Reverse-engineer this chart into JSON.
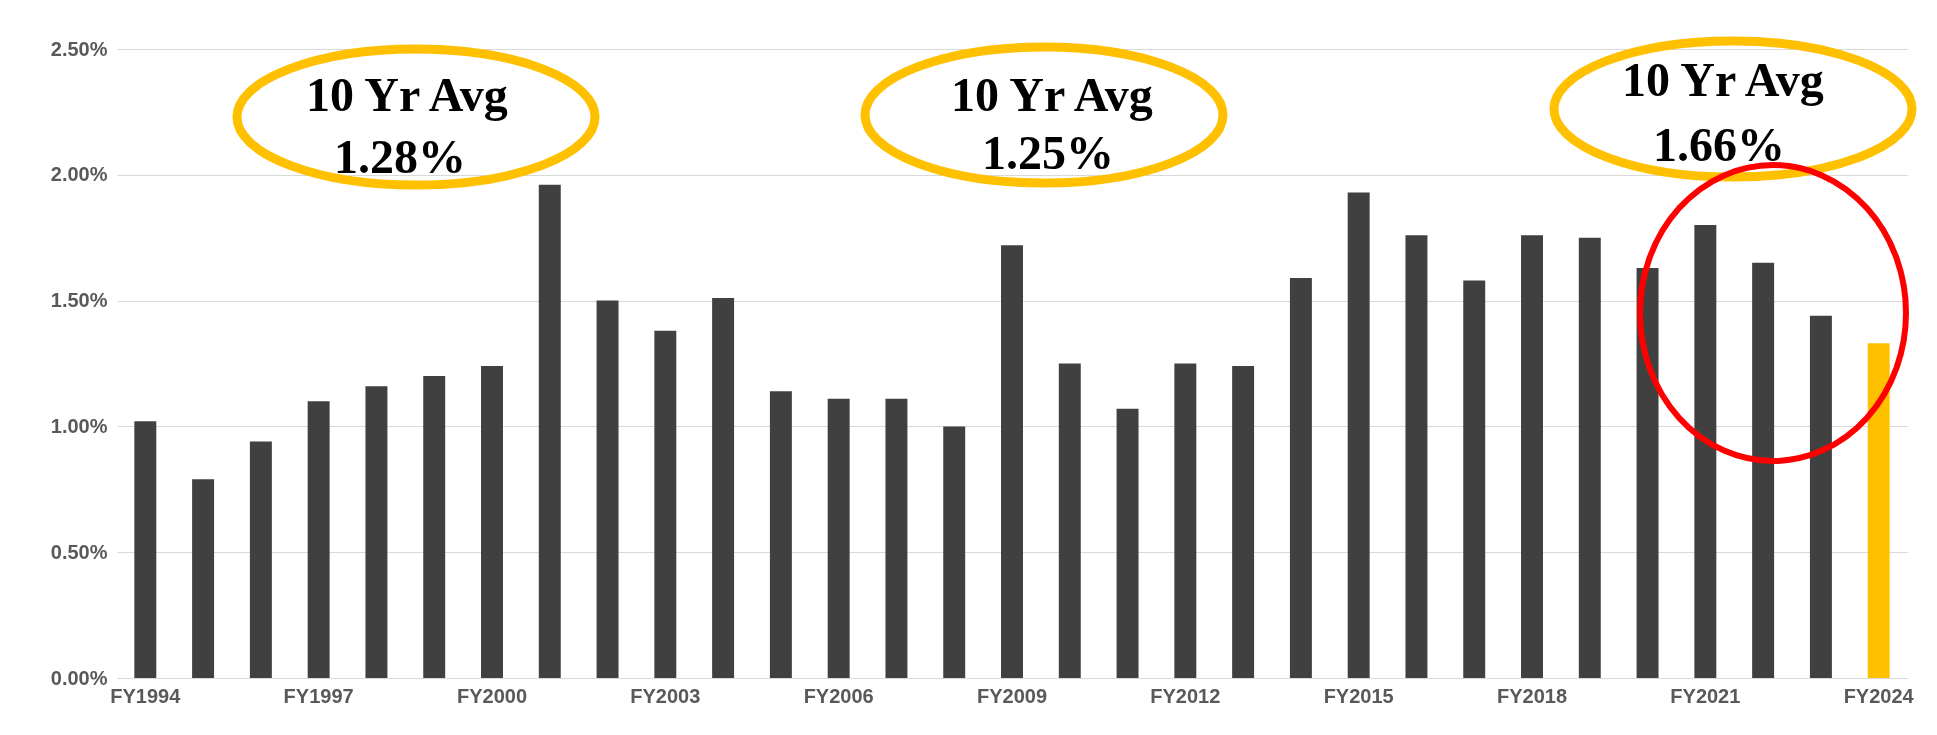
{
  "chart_data": {
    "type": "bar",
    "categories": [
      "FY1994",
      null,
      null,
      "FY1997",
      null,
      null,
      "FY2000",
      null,
      null,
      "FY2003",
      null,
      null,
      "FY2006",
      null,
      null,
      "FY2009",
      null,
      null,
      "FY2012",
      null,
      null,
      "FY2015",
      null,
      null,
      "FY2018",
      null,
      null,
      "FY2021",
      null,
      null,
      "FY2024"
    ],
    "values": [
      1.02,
      0.79,
      0.94,
      1.1,
      1.16,
      1.2,
      1.24,
      1.96,
      1.5,
      1.38,
      1.51,
      1.14,
      1.11,
      1.11,
      1.0,
      1.72,
      1.25,
      1.07,
      1.25,
      1.24,
      1.59,
      1.93,
      1.76,
      1.58,
      1.76,
      1.75,
      1.63,
      1.8,
      1.65,
      1.44,
      1.33
    ],
    "colors": [
      "#404040",
      "#404040",
      "#404040",
      "#404040",
      "#404040",
      "#404040",
      "#404040",
      "#404040",
      "#404040",
      "#404040",
      "#404040",
      "#404040",
      "#404040",
      "#404040",
      "#404040",
      "#404040",
      "#404040",
      "#404040",
      "#404040",
      "#404040",
      "#404040",
      "#404040",
      "#404040",
      "#404040",
      "#404040",
      "#404040",
      "#404040",
      "#404040",
      "#404040",
      "#404040",
      "#ffc000"
    ],
    "ylim": [
      0,
      2.5
    ],
    "yticks": [
      {
        "value": 0,
        "label": "0.00%"
      },
      {
        "value": 0.5,
        "label": "0.50%"
      },
      {
        "value": 1,
        "label": "1.00%"
      },
      {
        "value": 1.5,
        "label": "1.50%"
      },
      {
        "value": 2,
        "label": "2.00%"
      },
      {
        "value": 2.5,
        "label": "2.50%"
      }
    ],
    "grid": "y",
    "annotations": [
      "10 Yr Avg\n1.28%",
      "10 Yr Avg\n1.25%",
      "10 Yr Avg\n1.66%"
    ]
  }
}
